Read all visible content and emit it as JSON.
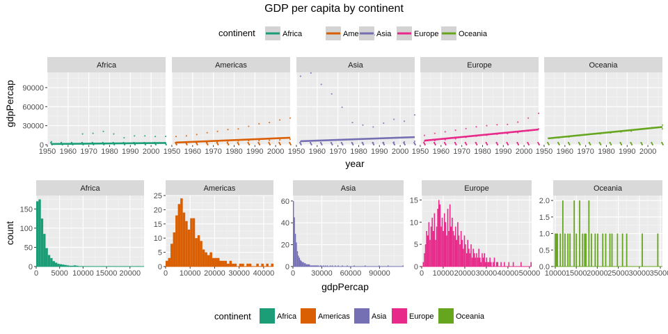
{
  "title": "GDP per capita by continent",
  "legend_top": {
    "title": "continent",
    "placement": "top"
  },
  "legend_bottom": {
    "title": "continent",
    "placement": "bottom"
  },
  "continents": [
    "Africa",
    "Americas",
    "Asia",
    "Europe",
    "Oceania"
  ],
  "colors": {
    "Africa": "#1b9e77",
    "Americas": "#d95f02",
    "Asia": "#7570b3",
    "Europe": "#e7298a",
    "Oceania": "#66a61e"
  },
  "chart_data": [
    {
      "type": "scatter",
      "xlabel": "year",
      "ylabel": "gdpPercap",
      "xlim": [
        1950,
        2007
      ],
      "ylim": [
        0,
        114000
      ],
      "x_ticks": [
        "1950",
        "1960",
        "1970",
        "1980",
        "1990",
        "2000"
      ],
      "y_ticks": [
        "0",
        "30000",
        "60000",
        "90000"
      ],
      "grid": true,
      "panels": [
        {
          "name": "Africa",
          "points": [
            [
              1952,
              1200
            ],
            [
              1952,
              4700
            ],
            [
              1957,
              1400
            ],
            [
              1962,
              1500
            ],
            [
              1967,
              1800
            ],
            [
              1967,
              17000
            ],
            [
              1972,
              2000
            ],
            [
              1972,
              18000
            ],
            [
              1977,
              2200
            ],
            [
              1977,
              21000
            ],
            [
              1982,
              2300
            ],
            [
              1982,
              17000
            ],
            [
              1987,
              2100
            ],
            [
              1987,
              11000
            ],
            [
              1992,
              2200
            ],
            [
              1992,
              14000
            ],
            [
              1997,
              2300
            ],
            [
              1997,
              14000
            ],
            [
              2002,
              2400
            ],
            [
              2002,
              13000
            ],
            [
              2007,
              2700
            ],
            [
              2007,
              13200
            ]
          ],
          "trend": [
            [
              1952,
              1200
            ],
            [
              2007,
              2800
            ]
          ]
        },
        {
          "name": "Americas",
          "points": [
            [
              1952,
              3000
            ],
            [
              1952,
              13000
            ],
            [
              1957,
              3300
            ],
            [
              1957,
              14000
            ],
            [
              1962,
              3800
            ],
            [
              1962,
              16000
            ],
            [
              1967,
              4300
            ],
            [
              1967,
              19000
            ],
            [
              1972,
              5000
            ],
            [
              1972,
              21000
            ],
            [
              1977,
              5600
            ],
            [
              1977,
              24000
            ],
            [
              1982,
              6000
            ],
            [
              1982,
              25000
            ],
            [
              1987,
              6300
            ],
            [
              1987,
              29000
            ],
            [
              1992,
              6500
            ],
            [
              1992,
              33000
            ],
            [
              1997,
              7000
            ],
            [
              1997,
              35000
            ],
            [
              2002,
              7500
            ],
            [
              2002,
              39000
            ],
            [
              2007,
              8500
            ],
            [
              2007,
              42000
            ]
          ],
          "trend": [
            [
              1952,
              3500
            ],
            [
              2007,
              11000
            ]
          ]
        },
        {
          "name": "Asia",
          "points": [
            [
              1952,
              5000
            ],
            [
              1952,
              108000
            ],
            [
              1957,
              113000
            ],
            [
              1962,
              95000
            ],
            [
              1967,
              80000
            ],
            [
              1972,
              59000
            ],
            [
              1977,
              2500
            ],
            [
              1982,
              2800
            ],
            [
              1987,
              3000
            ],
            [
              1992,
              3500
            ],
            [
              1997,
              4000
            ],
            [
              2002,
              4500
            ],
            [
              2007,
              5500
            ],
            [
              1977,
              35000
            ],
            [
              1982,
              31000
            ],
            [
              1987,
              28000
            ],
            [
              1992,
              34000
            ],
            [
              1997,
              40000
            ],
            [
              2002,
              37000
            ],
            [
              2007,
              47000
            ]
          ],
          "trend": [
            [
              1952,
              5500
            ],
            [
              2007,
              12000
            ]
          ]
        },
        {
          "name": "Europe",
          "points": [
            [
              1952,
              5700
            ],
            [
              1952,
              14700
            ],
            [
              1957,
              6600
            ],
            [
              1957,
              17900
            ],
            [
              1962,
              7900
            ],
            [
              1962,
              20400
            ],
            [
              1967,
              9300
            ],
            [
              1967,
              22900
            ],
            [
              1972,
              11700
            ],
            [
              1972,
              25400
            ],
            [
              1977,
              13500
            ],
            [
              1977,
              28200
            ],
            [
              1982,
              14900
            ],
            [
              1982,
              30000
            ],
            [
              1987,
              16600
            ],
            [
              1987,
              31500
            ],
            [
              1992,
              17600
            ],
            [
              1992,
              32000
            ],
            [
              1997,
              19000
            ],
            [
              1997,
              35600
            ],
            [
              2002,
              21700
            ],
            [
              2002,
              42000
            ],
            [
              2007,
              25000
            ],
            [
              2007,
              49400
            ]
          ],
          "trend": [
            [
              1952,
              6500
            ],
            [
              2007,
              24000
            ]
          ]
        },
        {
          "name": "Oceania",
          "points": [
            [
              1952,
              10300
            ],
            [
              1957,
              11000
            ],
            [
              1962,
              12200
            ],
            [
              1967,
              14500
            ],
            [
              1972,
              16700
            ],
            [
              1977,
              17300
            ],
            [
              1982,
              18600
            ],
            [
              1987,
              20100
            ],
            [
              1992,
              21300
            ],
            [
              1997,
              24800
            ],
            [
              2002,
              27000
            ],
            [
              2007,
              31000
            ],
            [
              2007,
              25000
            ]
          ],
          "trend": [
            [
              1952,
              10000
            ],
            [
              2007,
              28000
            ]
          ]
        }
      ]
    },
    {
      "type": "bar",
      "subtype": "histogram",
      "xlabel": "gdpPercap",
      "ylabel": "count",
      "grid": true,
      "panels": [
        {
          "name": "Africa",
          "xlim": [
            0,
            23000
          ],
          "ylim": [
            0,
            185
          ],
          "x_ticks": [
            0,
            5000,
            10000,
            15000,
            20000
          ],
          "y_ticks": [
            0,
            50,
            100,
            150
          ],
          "counts": [
            170,
            175,
            125,
            85,
            48,
            30,
            22,
            14,
            10,
            7,
            6,
            5,
            4,
            3,
            2,
            2,
            3,
            2,
            1,
            1,
            1,
            0,
            1,
            0,
            1,
            0,
            0,
            0,
            1,
            0,
            0,
            1,
            0,
            1,
            0,
            0,
            0,
            1,
            0,
            0,
            0,
            0,
            0,
            1,
            0,
            0
          ]
        },
        {
          "name": "Americas",
          "xlim": [
            0,
            44000
          ],
          "ylim": [
            0,
            25
          ],
          "x_ticks": [
            0,
            10000,
            20000,
            30000,
            40000
          ],
          "y_ticks": [
            0,
            5,
            10,
            15,
            20,
            25
          ],
          "counts": [
            2,
            3,
            8,
            12,
            18,
            22,
            24,
            19,
            16,
            13,
            17,
            17,
            10,
            11,
            9,
            6,
            5,
            4,
            5,
            3,
            3,
            3,
            2,
            2,
            2,
            1,
            2,
            1,
            1,
            0,
            1,
            1,
            0,
            1,
            1,
            0,
            0,
            1,
            0,
            1,
            0,
            1,
            0,
            1
          ]
        },
        {
          "name": "Asia",
          "xlim": [
            0,
            115000
          ],
          "ylim": [
            0,
            65
          ],
          "x_ticks": [
            0,
            30000,
            60000,
            90000
          ],
          "y_ticks": [
            0,
            20,
            40,
            60
          ],
          "counts": [
            60,
            45,
            30,
            22,
            14,
            10,
            8,
            6,
            5,
            4,
            4,
            3,
            3,
            2,
            2,
            2,
            2,
            1,
            1,
            1,
            1,
            1,
            1,
            1,
            1,
            1,
            0,
            1,
            1,
            0,
            1,
            0,
            1,
            0,
            1,
            0,
            0,
            1,
            0,
            1,
            0,
            0,
            1,
            0,
            0,
            1,
            0,
            0,
            0,
            1,
            0,
            0,
            0,
            0,
            1,
            0,
            0,
            0,
            0,
            0,
            0,
            1,
            0,
            0,
            0,
            0,
            0,
            0,
            0,
            0,
            0,
            0,
            1,
            0,
            0,
            0,
            0,
            0,
            0,
            0,
            0,
            0,
            0,
            0,
            0,
            0,
            1,
            0,
            0,
            0,
            0,
            0,
            0,
            0,
            0,
            1,
            0,
            0,
            0,
            0,
            0,
            0,
            0,
            0,
            0,
            0,
            0,
            0,
            0,
            0,
            1
          ]
        },
        {
          "name": "Europe",
          "xlim": [
            0,
            51000
          ],
          "ylim": [
            0,
            16
          ],
          "x_ticks": [
            0,
            10000,
            20000,
            30000,
            40000,
            50000
          ],
          "y_ticks": [
            0,
            5,
            10,
            15
          ],
          "counts": [
            0,
            1,
            3,
            5,
            8,
            7,
            10,
            6,
            9,
            11,
            8,
            12,
            6,
            9,
            13,
            15,
            14,
            9,
            11,
            8,
            12,
            10,
            7,
            13,
            8,
            14,
            9,
            11,
            8,
            7,
            9,
            6,
            10,
            7,
            5,
            8,
            6,
            4,
            7,
            5,
            3,
            6,
            4,
            3,
            5,
            2,
            4,
            3,
            2,
            3,
            2,
            4,
            2,
            1,
            3,
            2,
            3,
            1,
            2,
            1,
            1,
            2,
            1,
            0,
            1,
            2,
            0,
            1,
            1,
            0,
            0,
            1,
            0,
            0,
            1,
            0,
            0,
            0,
            1,
            0,
            0,
            0,
            1,
            0,
            0,
            0,
            0,
            0,
            0,
            1,
            0,
            0,
            0,
            0,
            0,
            0,
            0,
            0,
            1
          ]
        },
        {
          "name": "Oceania",
          "xlim": [
            9500,
            35500
          ],
          "ylim": [
            0,
            2.15
          ],
          "x_ticks": [
            10000,
            15000,
            20000,
            25000,
            30000,
            35000
          ],
          "y_ticks": [
            "0.0",
            "0.5",
            "1.0",
            "1.5",
            "2.0"
          ],
          "bars": [
            [
              10000,
              1
            ],
            [
              10300,
              1
            ],
            [
              10500,
              1
            ],
            [
              11200,
              1
            ],
            [
              11800,
              2
            ],
            [
              12300,
              1
            ],
            [
              13000,
              1
            ],
            [
              13500,
              1
            ],
            [
              14500,
              2
            ],
            [
              15000,
              1
            ],
            [
              15800,
              2
            ],
            [
              16500,
              1
            ],
            [
              17000,
              1
            ],
            [
              17300,
              1
            ],
            [
              18000,
              2
            ],
            [
              18600,
              1
            ],
            [
              19500,
              1
            ],
            [
              20100,
              1
            ],
            [
              21300,
              1
            ],
            [
              22000,
              1
            ],
            [
              23000,
              1
            ],
            [
              23500,
              1
            ],
            [
              24800,
              1
            ],
            [
              26000,
              1
            ],
            [
              27000,
              1
            ],
            [
              30700,
              1
            ],
            [
              34400,
              1
            ]
          ]
        }
      ]
    }
  ]
}
